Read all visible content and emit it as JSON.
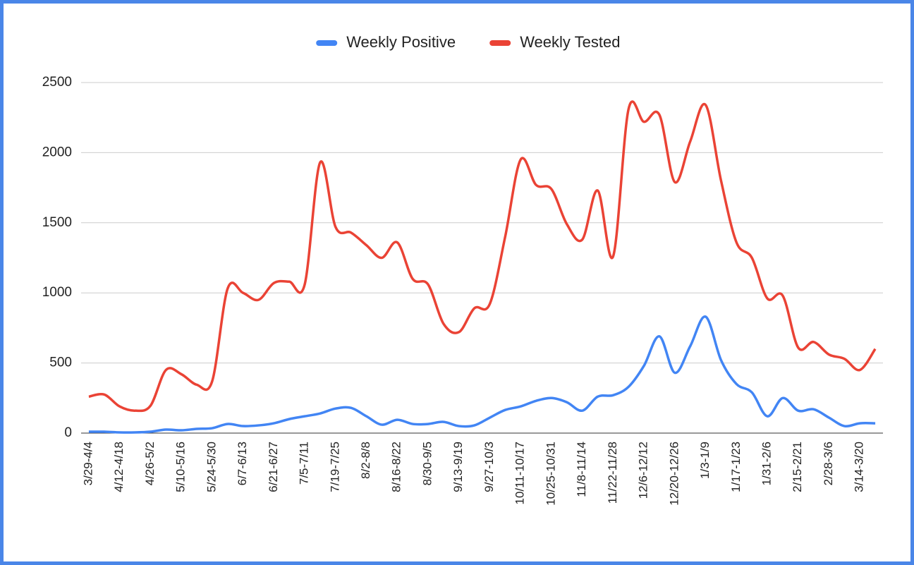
{
  "chart_data": {
    "type": "line",
    "categories": [
      "3/29-4/4",
      null,
      "4/12-4/18",
      null,
      "4/26-5/2",
      null,
      "5/10-5/16",
      null,
      "5/24-5/30",
      null,
      "6/7-6/13",
      null,
      "6/21-6/27",
      null,
      "7/5-7/11",
      null,
      "7/19-7/25",
      null,
      "8/2-8/8",
      null,
      "8/16-8/22",
      null,
      "8/30-9/5",
      null,
      "9/13-9/19",
      null,
      "9/27-10/3",
      null,
      "10/11-10/17",
      null,
      "10/25-10/31",
      null,
      "11/8-11/14",
      null,
      "11/22-11/28",
      null,
      "12/6-12/12",
      null,
      "12/20-12/26",
      null,
      "1/3-1/9",
      null,
      "1/17-1/23",
      null,
      "1/31-2/6",
      null,
      "2/15-2/21",
      null,
      "2/28-3/6",
      null,
      "3/14-3/20",
      null
    ],
    "series": [
      {
        "name": "Weekly Positive",
        "color": "#4285f4",
        "values": [
          10,
          10,
          5,
          5,
          10,
          25,
          20,
          30,
          35,
          65,
          50,
          55,
          70,
          100,
          120,
          140,
          175,
          180,
          120,
          60,
          95,
          65,
          65,
          80,
          50,
          55,
          110,
          165,
          190,
          230,
          250,
          220,
          160,
          260,
          270,
          330,
          480,
          690,
          430,
          620,
          830,
          520,
          350,
          290,
          120,
          250,
          160,
          170,
          110,
          50,
          70,
          70
        ]
      },
      {
        "name": "Weekly Tested",
        "color": "#ea4335",
        "values": [
          260,
          275,
          190,
          160,
          195,
          450,
          420,
          345,
          370,
          1030,
          1000,
          950,
          1070,
          1080,
          1060,
          1930,
          1470,
          1430,
          1340,
          1250,
          1360,
          1100,
          1060,
          780,
          720,
          890,
          920,
          1400,
          1950,
          1770,
          1740,
          1490,
          1380,
          1730,
          1260,
          2310,
          2220,
          2270,
          1790,
          2080,
          2340,
          1800,
          1360,
          1250,
          960,
          980,
          610,
          650,
          560,
          530,
          450,
          600
        ]
      }
    ],
    "ylim": [
      0,
      2500
    ],
    "yticks": [
      0,
      500,
      1000,
      1500,
      2000,
      2500
    ],
    "grid": true,
    "legend": "top"
  }
}
